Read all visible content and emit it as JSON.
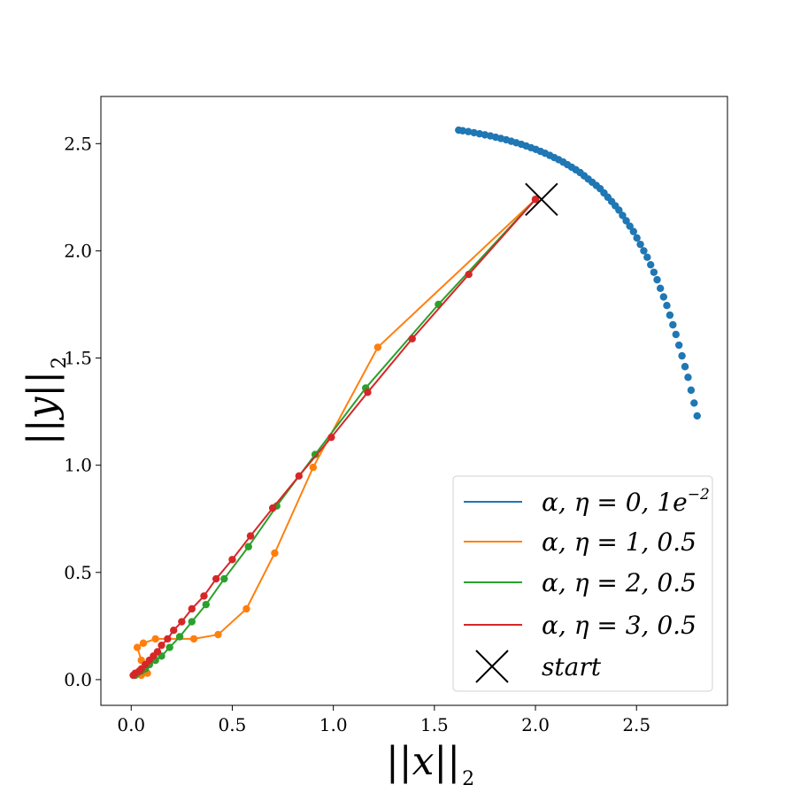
{
  "chart_data": {
    "type": "line",
    "xlabel": "||x||",
    "xlabel_sub": "2",
    "ylabel": "||y||",
    "ylabel_sub": "2",
    "xlim": [
      -0.15,
      2.95
    ],
    "ylim": [
      -0.12,
      2.72
    ],
    "xticks": [
      0.0,
      0.5,
      1.0,
      1.5,
      2.0,
      2.5
    ],
    "xtick_labels": [
      "0.0",
      "0.5",
      "1.0",
      "1.5",
      "2.0",
      "2.5"
    ],
    "yticks": [
      0.0,
      0.5,
      1.0,
      1.5,
      2.0,
      2.5
    ],
    "ytick_labels": [
      "0.0",
      "0.5",
      "1.0",
      "1.5",
      "2.0",
      "2.5"
    ],
    "grid": false,
    "legend_position": "lower-right",
    "series": [
      {
        "name": "α, η = 0, 1e−2",
        "label_main": "α, η = 0, 1e",
        "label_sup": "−2",
        "color": "#1f77b4",
        "kind": "dots",
        "x": [
          2.8,
          2.785,
          2.77,
          2.755,
          2.74,
          2.725,
          2.71,
          2.695,
          2.68,
          2.665,
          2.65,
          2.634,
          2.618,
          2.602,
          2.586,
          2.57,
          2.553,
          2.536,
          2.519,
          2.502,
          2.485,
          2.467,
          2.449,
          2.431,
          2.413,
          2.395,
          2.377,
          2.358,
          2.339,
          2.32,
          2.301,
          2.281,
          2.261,
          2.241,
          2.221,
          2.2,
          2.179,
          2.158,
          2.137,
          2.115,
          2.093,
          2.071,
          2.048,
          2.025,
          2.002,
          1.978,
          1.954,
          1.93,
          1.905,
          1.88,
          1.855,
          1.829,
          1.803,
          1.777,
          1.75,
          1.723,
          1.696,
          1.668,
          1.64,
          1.62
        ],
        "y": [
          1.23,
          1.29,
          1.35,
          1.41,
          1.46,
          1.51,
          1.56,
          1.61,
          1.655,
          1.7,
          1.745,
          1.785,
          1.825,
          1.865,
          1.9,
          1.935,
          1.97,
          2.0,
          2.03,
          2.06,
          2.09,
          2.115,
          2.14,
          2.165,
          2.19,
          2.21,
          2.23,
          2.25,
          2.27,
          2.29,
          2.305,
          2.32,
          2.335,
          2.35,
          2.365,
          2.378,
          2.39,
          2.402,
          2.414,
          2.425,
          2.435,
          2.445,
          2.455,
          2.464,
          2.473,
          2.481,
          2.489,
          2.497,
          2.504,
          2.511,
          2.518,
          2.524,
          2.53,
          2.536,
          2.541,
          2.546,
          2.551,
          2.556,
          2.56,
          2.563
        ]
      },
      {
        "name": "α, η = 1, 0.5",
        "label_main": "α, η = 1, 0.5",
        "label_sup": "",
        "color": "#ff7f0e",
        "kind": "line",
        "x": [
          2.0,
          1.22,
          0.9,
          0.71,
          0.57,
          0.43,
          0.31,
          0.12,
          0.06,
          0.03,
          0.05,
          0.08,
          0.05,
          0.03
        ],
        "y": [
          2.24,
          1.55,
          0.99,
          0.59,
          0.33,
          0.21,
          0.19,
          0.19,
          0.17,
          0.15,
          0.09,
          0.03,
          0.02,
          0.03
        ]
      },
      {
        "name": "α, η = 2, 0.5",
        "label_main": "α, η = 2, 0.5",
        "label_sup": "",
        "color": "#2ca02c",
        "kind": "line",
        "x": [
          2.0,
          1.52,
          1.16,
          0.91,
          0.72,
          0.58,
          0.46,
          0.37,
          0.3,
          0.24,
          0.19,
          0.15,
          0.12,
          0.09,
          0.07,
          0.05,
          0.03,
          0.02
        ],
        "y": [
          2.24,
          1.75,
          1.36,
          1.05,
          0.81,
          0.62,
          0.47,
          0.35,
          0.27,
          0.2,
          0.15,
          0.11,
          0.09,
          0.07,
          0.05,
          0.04,
          0.03,
          0.02
        ]
      },
      {
        "name": "α, η = 3, 0.5",
        "label_main": "α, η = 3, 0.5",
        "label_sup": "",
        "color": "#d62728",
        "kind": "line",
        "x": [
          2.0,
          1.67,
          1.39,
          1.17,
          0.99,
          0.83,
          0.7,
          0.59,
          0.5,
          0.42,
          0.36,
          0.3,
          0.25,
          0.21,
          0.18,
          0.15,
          0.13,
          0.11,
          0.09,
          0.07,
          0.05,
          0.04,
          0.02,
          0.01
        ],
        "y": [
          2.24,
          1.89,
          1.59,
          1.34,
          1.13,
          0.95,
          0.8,
          0.67,
          0.56,
          0.47,
          0.39,
          0.33,
          0.27,
          0.23,
          0.19,
          0.16,
          0.13,
          0.11,
          0.09,
          0.07,
          0.05,
          0.04,
          0.03,
          0.02
        ]
      }
    ],
    "start": {
      "label": "start",
      "x": 2.03,
      "y": 2.24,
      "color": "#000000"
    }
  }
}
